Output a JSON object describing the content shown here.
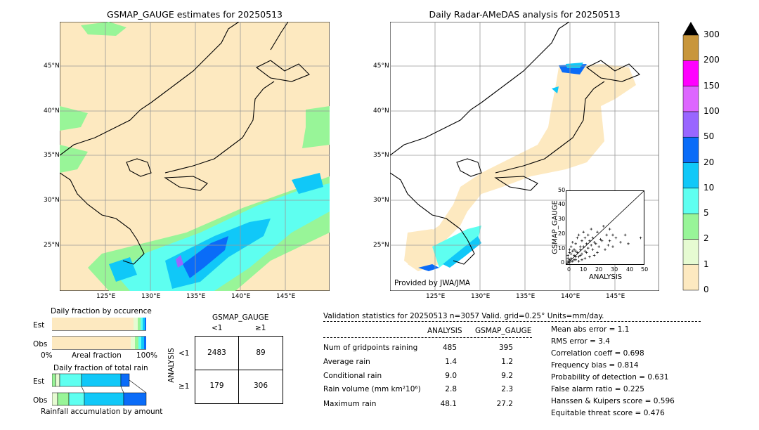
{
  "left_map": {
    "title": "GSMAP_GAUGE estimates for 20250513",
    "lat_labels": [
      "45°N",
      "40°N",
      "35°N",
      "30°N",
      "25°N"
    ],
    "lon_labels": [
      "125°E",
      "130°E",
      "135°E",
      "140°E",
      "145°E"
    ]
  },
  "right_map": {
    "title": "Daily Radar-AMeDAS analysis for 20250513",
    "lat_labels": [
      "45°N",
      "40°N",
      "35°N",
      "30°N",
      "25°N"
    ],
    "lon_labels": [
      "125°E",
      "130°E",
      "135°E",
      "140°E",
      "145°E"
    ],
    "credit": "Provided by JWA/JMA"
  },
  "colorbar": {
    "levels": [
      "0",
      "1",
      "2",
      "5",
      "10",
      "20",
      "50",
      "100",
      "150",
      "200",
      "300"
    ],
    "colors": [
      "#fde9c0",
      "#e6fbd2",
      "#98f598",
      "#5efff0",
      "#10c8f8",
      "#0a6cf8",
      "#9966ff",
      "#dd66ff",
      "#ff00ff",
      "#c8963c"
    ],
    "extend_color": "#000000"
  },
  "occurrence_chart": {
    "title": "Daily fraction by occurence",
    "row_labels": [
      "Est",
      "Obs"
    ],
    "axis_left": "0%",
    "axis_mid": "Areal fraction",
    "axis_right": "100%"
  },
  "rain_chart": {
    "title": "Daily fraction of total rain",
    "row_labels": [
      "Est",
      "Obs"
    ],
    "axis_label": "Rainfall accumulation by amount"
  },
  "contingency": {
    "title": "GSMAP_GAUGE",
    "col_labels": [
      "<1",
      "≥1"
    ],
    "row_axis": "ANALYSIS",
    "row_labels": [
      "<1",
      "≥1"
    ],
    "cells": [
      [
        "2483",
        "89"
      ],
      [
        "179",
        "306"
      ]
    ]
  },
  "validation": {
    "header": "Validation statistics for 20250513  n=3057 Valid. grid=0.25° Units=mm/day.",
    "col_analysis": "ANALYSIS",
    "col_gsmap": "GSMAP_GAUGE",
    "rows": [
      {
        "label": "Num of gridpoints raining",
        "analysis": "485",
        "gsmap": "395"
      },
      {
        "label": "Average rain",
        "analysis": "1.4",
        "gsmap": "1.2"
      },
      {
        "label": "Conditional rain",
        "analysis": "9.0",
        "gsmap": "9.2"
      },
      {
        "label": "Rain volume (mm km²10⁶)",
        "analysis": "2.8",
        "gsmap": "2.3"
      },
      {
        "label": "Maximum rain",
        "analysis": "48.1",
        "gsmap": "27.2"
      }
    ],
    "scores": [
      "Mean abs error =    1.1",
      "RMS error =    3.4",
      "Correlation coeff =  0.698",
      "Frequency bias =  0.814",
      "Probability of detection =  0.631",
      "False alarm ratio =  0.225",
      "Hanssen & Kuipers score =  0.596",
      "Equitable threat score =  0.476"
    ]
  },
  "chart_data": {
    "type": "scatter",
    "xlabel": "ANALYSIS",
    "ylabel": "GSMAP_GAUGE",
    "xlim": [
      0,
      50
    ],
    "ylim": [
      0,
      50
    ],
    "x_ticks": [
      "0",
      "10",
      "20",
      "30",
      "40",
      "50"
    ],
    "y_ticks": [
      "0",
      "10",
      "20",
      "30",
      "40",
      "50"
    ],
    "points": [
      [
        1,
        2
      ],
      [
        2,
        1
      ],
      [
        3,
        4
      ],
      [
        4,
        2
      ],
      [
        5,
        6
      ],
      [
        6,
        3
      ],
      [
        7,
        8
      ],
      [
        8,
        5
      ],
      [
        9,
        10
      ],
      [
        10,
        7
      ],
      [
        11,
        12
      ],
      [
        12,
        9
      ],
      [
        13,
        14
      ],
      [
        14,
        11
      ],
      [
        15,
        16
      ],
      [
        16,
        13
      ],
      [
        17,
        18
      ],
      [
        18,
        15
      ],
      [
        20,
        22
      ],
      [
        22,
        17
      ],
      [
        24,
        26
      ],
      [
        26,
        20
      ],
      [
        28,
        24
      ],
      [
        30,
        20
      ],
      [
        2,
        8
      ],
      [
        3,
        12
      ],
      [
        4,
        15
      ],
      [
        5,
        10
      ],
      [
        6,
        14
      ],
      [
        7,
        18
      ],
      [
        8,
        20
      ],
      [
        9,
        12
      ],
      [
        10,
        16
      ],
      [
        11,
        22
      ],
      [
        12,
        18
      ],
      [
        14,
        20
      ],
      [
        16,
        24
      ],
      [
        1,
        6
      ],
      [
        2,
        10
      ],
      [
        3,
        7
      ],
      [
        5,
        3
      ],
      [
        6,
        9
      ],
      [
        8,
        2
      ],
      [
        10,
        3
      ],
      [
        12,
        4
      ],
      [
        15,
        5
      ],
      [
        18,
        6
      ],
      [
        20,
        8
      ],
      [
        25,
        10
      ],
      [
        30,
        12
      ],
      [
        35,
        15
      ],
      [
        40,
        14
      ],
      [
        48,
        18
      ],
      [
        32,
        18
      ],
      [
        28,
        16
      ],
      [
        38,
        20
      ],
      [
        4,
        9
      ],
      [
        6,
        5
      ],
      [
        9,
        6
      ],
      [
        13,
        8
      ],
      [
        17,
        10
      ],
      [
        21,
        12
      ],
      [
        19,
        14
      ],
      [
        23,
        16
      ],
      [
        27,
        13
      ],
      [
        1,
        1
      ],
      [
        2,
        3
      ],
      [
        3,
        2
      ],
      [
        1,
        4
      ]
    ]
  }
}
